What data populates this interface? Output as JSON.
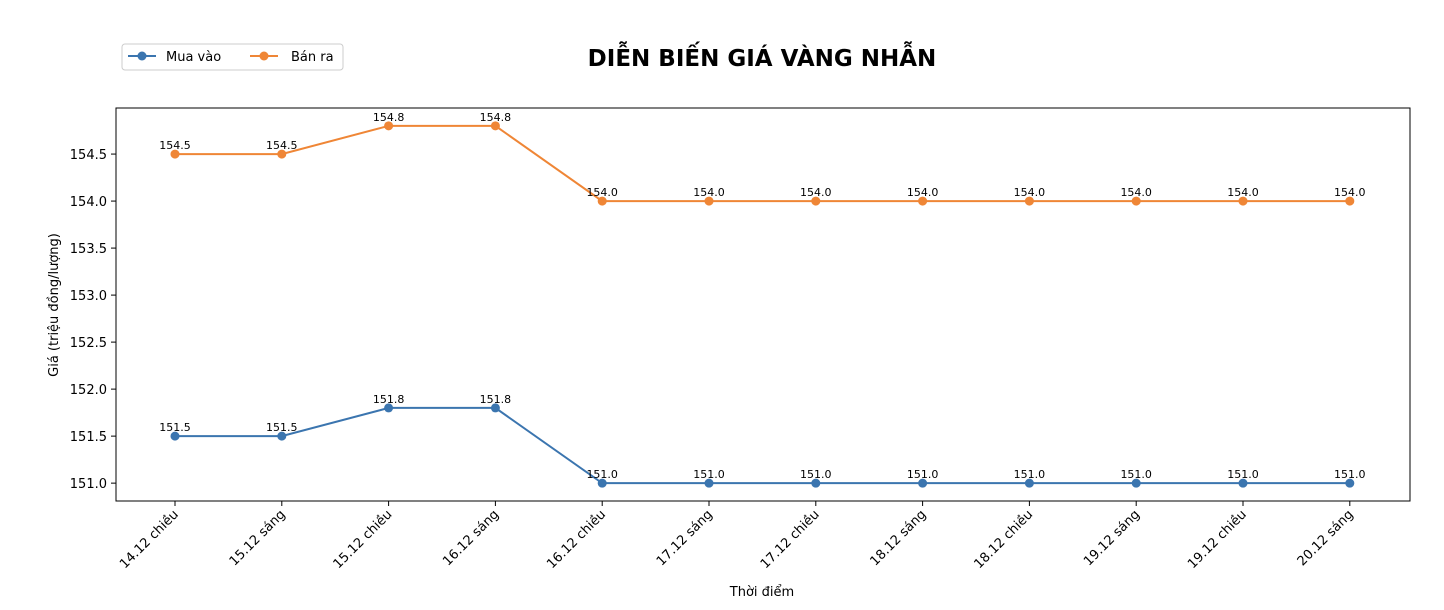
{
  "chart_data": {
    "type": "line",
    "title": "DIỄN BIẾN GIÁ VÀNG NHẪN",
    "xlabel": "Thời điểm",
    "ylabel": "Giá (triệu đồng/lượng)",
    "categories": [
      "14.12 chiều",
      "15.12 sáng",
      "15.12 chiều",
      "16.12 sáng",
      "16.12 chiều",
      "17.12 sáng",
      "17.12 chiều",
      "18.12 sáng",
      "18.12 chiều",
      "19.12 sáng",
      "19.12 chiều",
      "20.12 sáng"
    ],
    "series": [
      {
        "name": "Mua vào",
        "color": "#3b75af",
        "values": [
          151.5,
          151.5,
          151.8,
          151.8,
          151.0,
          151.0,
          151.0,
          151.0,
          151.0,
          151.0,
          151.0,
          151.0
        ],
        "labels": [
          "151.5",
          "151.5",
          "151.8",
          "151.8",
          "151.0",
          "151.0",
          "151.0",
          "151.0",
          "151.0",
          "151.0",
          "151.0",
          "151.0"
        ]
      },
      {
        "name": "Bán ra",
        "color": "#ef8636",
        "values": [
          154.5,
          154.5,
          154.8,
          154.8,
          154.0,
          154.0,
          154.0,
          154.0,
          154.0,
          154.0,
          154.0,
          154.0
        ],
        "labels": [
          "154.5",
          "154.5",
          "154.8",
          "154.8",
          "154.0",
          "154.0",
          "154.0",
          "154.0",
          "154.0",
          "154.0",
          "154.0",
          "154.0"
        ]
      }
    ],
    "yticks": [
      "151.0",
      "151.5",
      "152.0",
      "152.5",
      "153.0",
      "153.5",
      "154.0",
      "154.5"
    ],
    "ylim": [
      150.81,
      154.99
    ],
    "legend": "top-left",
    "grid": false
  }
}
